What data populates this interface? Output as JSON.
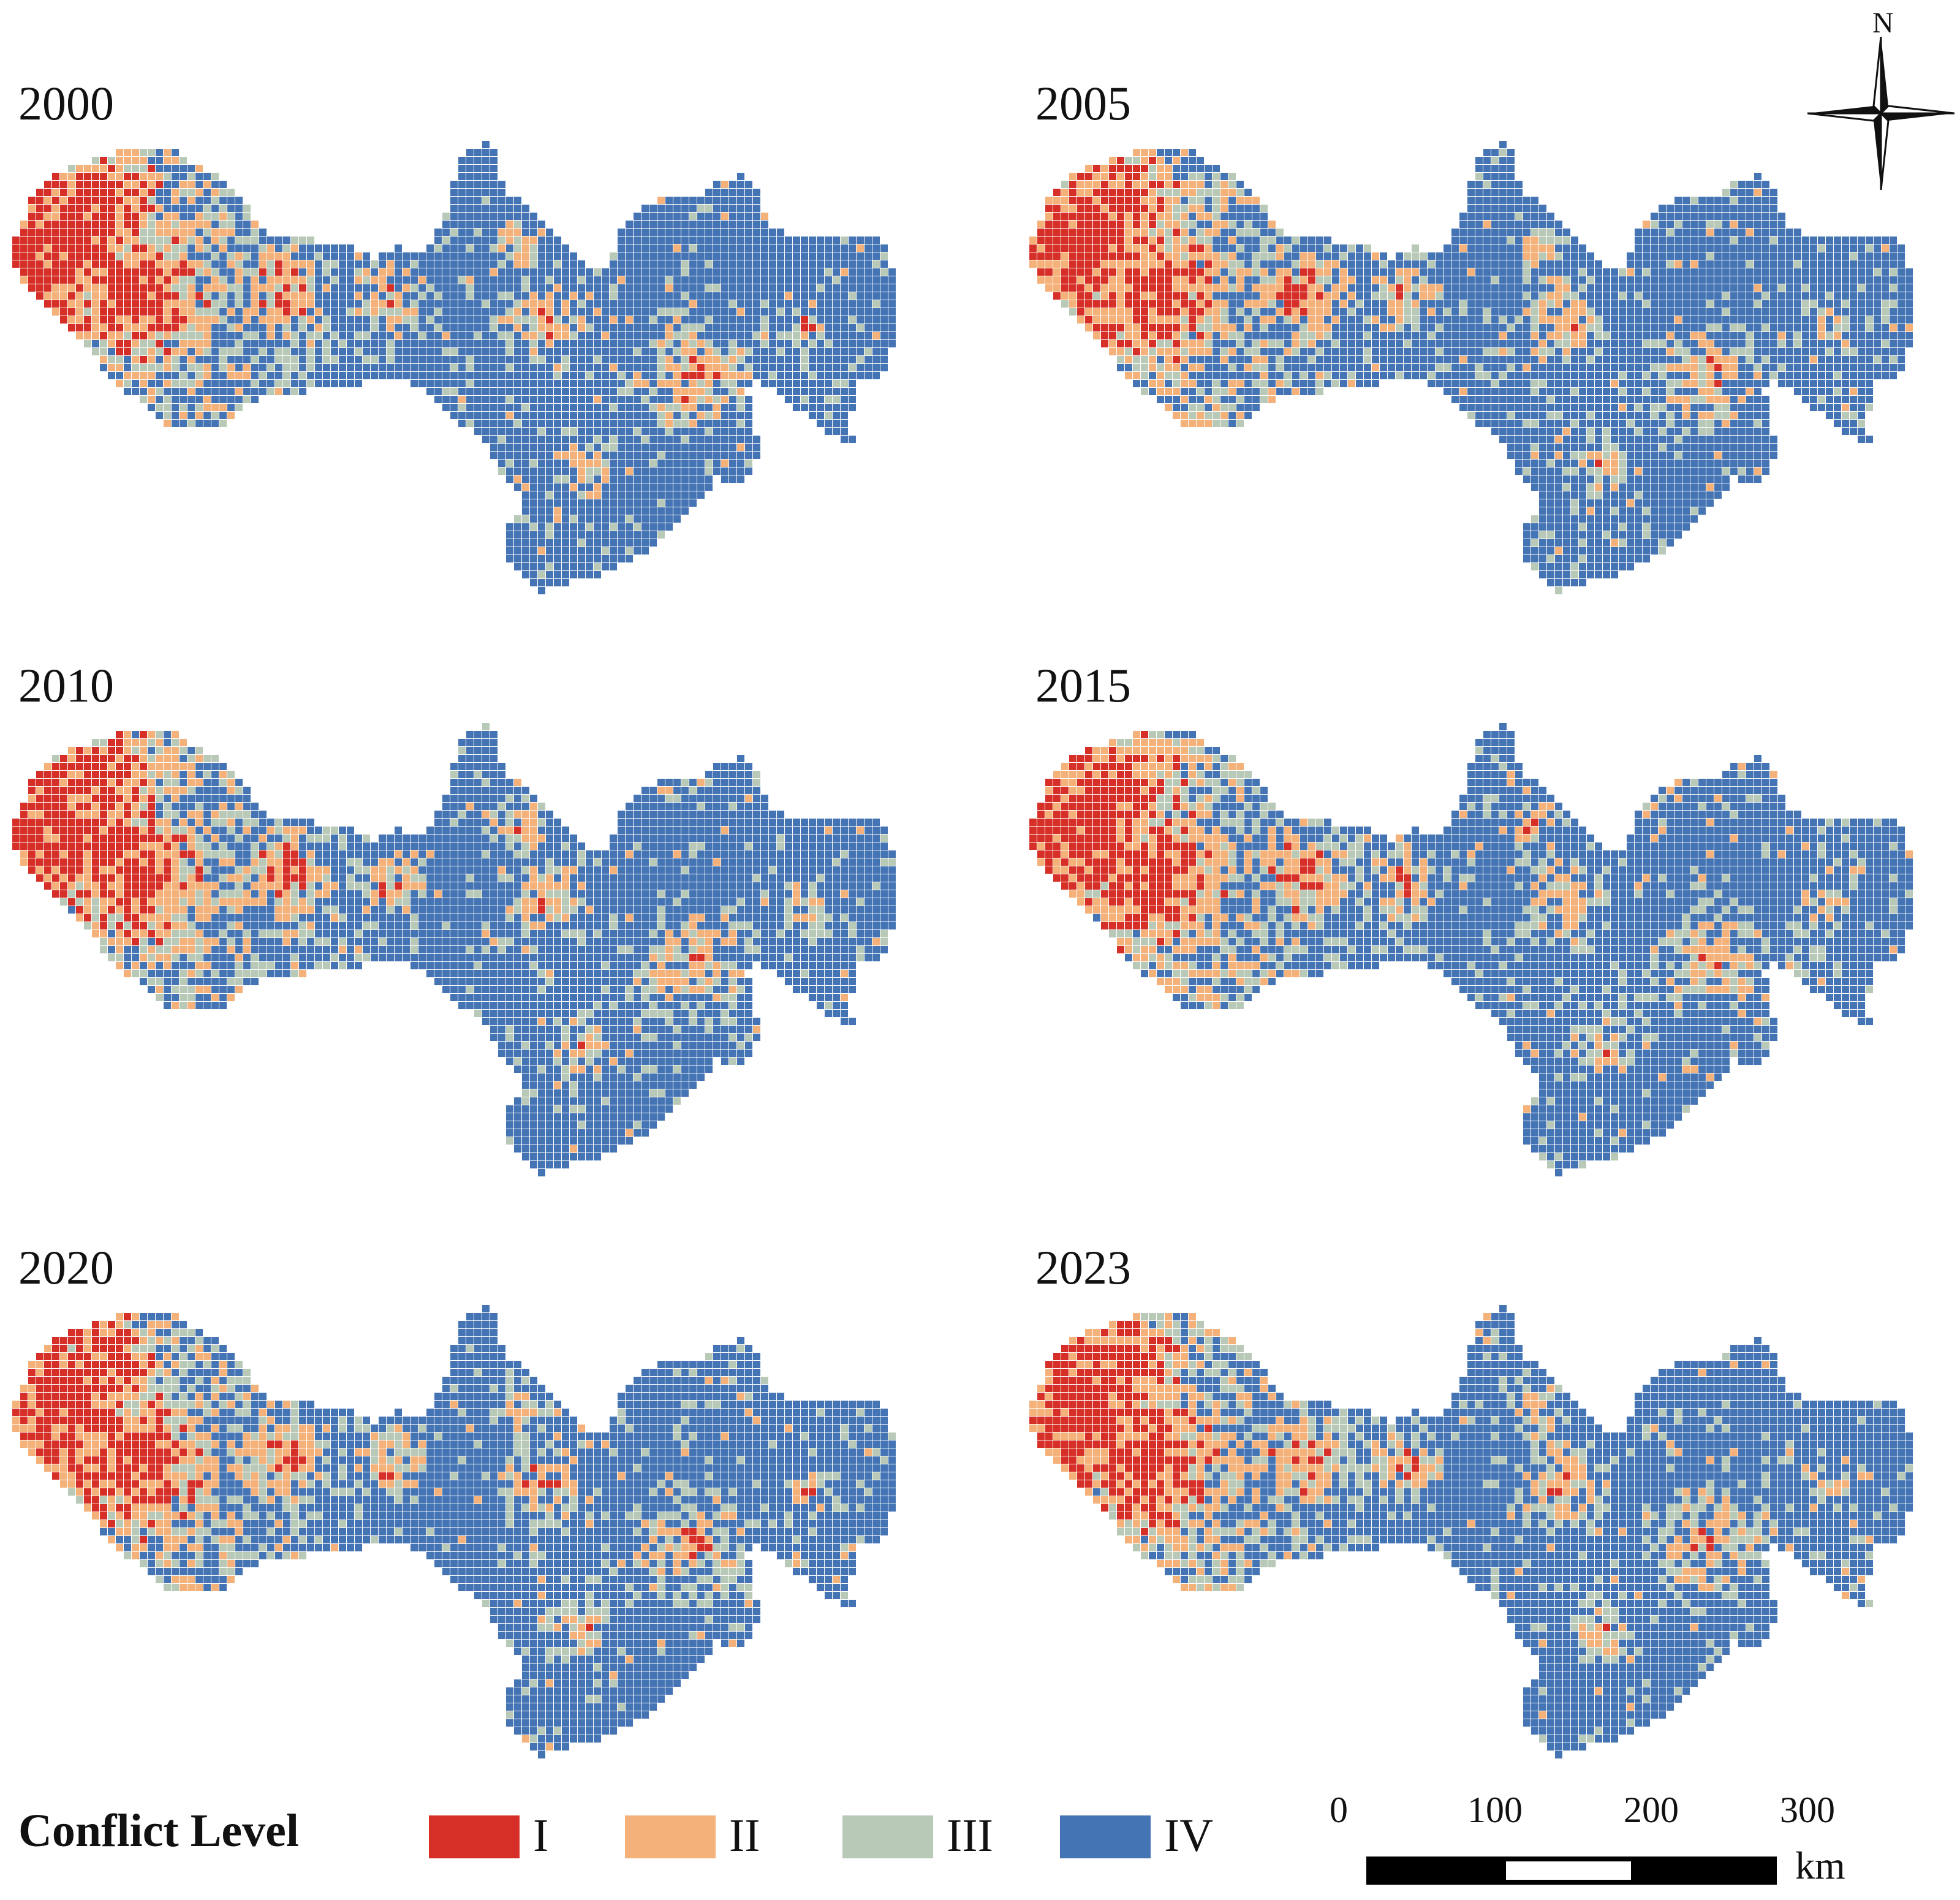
{
  "panels": [
    {
      "year": "2000",
      "seed": 11
    },
    {
      "year": "2005",
      "seed": 23
    },
    {
      "year": "2010",
      "seed": 37
    },
    {
      "year": "2015",
      "seed": 41
    },
    {
      "year": "2020",
      "seed": 53
    },
    {
      "year": "2023",
      "seed": 67
    }
  ],
  "compass": {
    "label": "N"
  },
  "legend": {
    "title": "Conflict Level",
    "items": [
      {
        "label": "I",
        "color": "#d62f27"
      },
      {
        "label": "II",
        "color": "#f4b17a"
      },
      {
        "label": "III",
        "color": "#b9c9b8"
      },
      {
        "label": "IV",
        "color": "#4574b4"
      }
    ]
  },
  "scale_bar": {
    "ticks": [
      "0",
      "100",
      "200",
      "300"
    ],
    "unit": "km"
  }
}
